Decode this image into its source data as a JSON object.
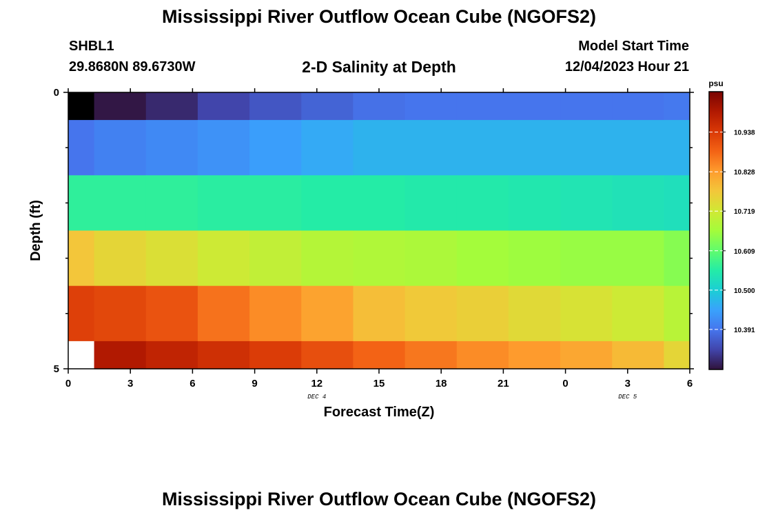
{
  "header": {
    "title": "Mississippi River Outflow Ocean Cube (NGOFS2)",
    "station_id": "SHBL1",
    "coordinates": "29.8680N  89.6730W",
    "plot_title": "2-D Salinity at Depth",
    "start_label": "Model Start Time",
    "start_time": "12/04/2023 Hour 21"
  },
  "footer": {
    "title": "Mississippi River Outflow Ocean Cube (NGOFS2)"
  },
  "chart_data": {
    "type": "heatmap",
    "title": "2-D Salinity at Depth",
    "xlabel": "Forecast Time(Z)",
    "ylabel": "Depth (ft)",
    "x_ticks": [
      "0",
      "3",
      "6",
      "9",
      "12",
      "15",
      "18",
      "21",
      "0",
      "3",
      "6"
    ],
    "x_tick_hours": [
      0,
      3,
      6,
      9,
      12,
      15,
      18,
      21,
      24,
      27,
      30
    ],
    "x_range": [
      0,
      30
    ],
    "x_time_steps": [
      0,
      1.5,
      4,
      6.5,
      9,
      11.5,
      14,
      16.5,
      19,
      21.5,
      24,
      26.5,
      29
    ],
    "x_cell_edges": [
      0,
      1.25,
      3.75,
      6.25,
      8.75,
      11.25,
      13.75,
      16.25,
      18.75,
      21.25,
      23.75,
      26.25,
      28.75,
      30
    ],
    "date_labels": [
      {
        "text": "DEC 4",
        "hour": 12
      },
      {
        "text": "DEC 5",
        "hour": 27
      }
    ],
    "y_ticks": [
      "0",
      "5"
    ],
    "y_tick_values": [
      0,
      5
    ],
    "y_minor_ticks": [
      1,
      2,
      3,
      4
    ],
    "y_range": [
      0,
      5
    ],
    "depth_layers": [
      0.5,
      1.5,
      2.5,
      3.5,
      4.5,
      5
    ],
    "depth_layer_edges": [
      0,
      0.5,
      1.5,
      2.5,
      3.5,
      4.5,
      5
    ],
    "salinity": [
      [
        null,
        10.285,
        10.305,
        10.335,
        10.355,
        10.37,
        10.385,
        10.39,
        10.39,
        10.39,
        10.39,
        10.39,
        10.395
      ],
      [
        10.39,
        10.405,
        10.415,
        10.425,
        10.44,
        10.455,
        10.465,
        10.465,
        10.465,
        10.465,
        10.465,
        10.465,
        10.465
      ],
      [
        10.565,
        10.565,
        10.565,
        10.56,
        10.56,
        10.555,
        10.555,
        10.55,
        10.55,
        10.545,
        10.54,
        10.535,
        10.53
      ],
      [
        10.775,
        10.75,
        10.735,
        10.715,
        10.7,
        10.685,
        10.68,
        10.675,
        10.665,
        10.66,
        10.655,
        10.655,
        10.64
      ],
      [
        10.93,
        10.92,
        10.905,
        10.87,
        10.845,
        10.82,
        10.785,
        10.77,
        10.76,
        10.745,
        10.73,
        10.715,
        10.69
      ],
      [
        null,
        10.995,
        10.975,
        10.955,
        10.935,
        10.91,
        10.885,
        10.865,
        10.845,
        10.83,
        10.815,
        10.79,
        10.75
      ]
    ],
    "colorbar": {
      "unit": "psu",
      "range": [
        10.28,
        11.05
      ],
      "tick_values": [
        10.391,
        10.5,
        10.609,
        10.719,
        10.828,
        10.938
      ],
      "tick_labels": [
        "10.391",
        "10.500",
        "10.609",
        "10.719",
        "10.828",
        "10.938"
      ],
      "colormap": "turbo",
      "colors": [
        "#30123b",
        "#4145ab",
        "#4675ed",
        "#39a2fc",
        "#1bcfd4",
        "#24eca6",
        "#61fc6c",
        "#a4fc3b",
        "#d1e834",
        "#f3c63a",
        "#fe9b2d",
        "#f36315",
        "#d93806",
        "#b11901",
        "#7a0402"
      ]
    },
    "null_fill": [
      "#000000",
      "#ffffff"
    ]
  }
}
